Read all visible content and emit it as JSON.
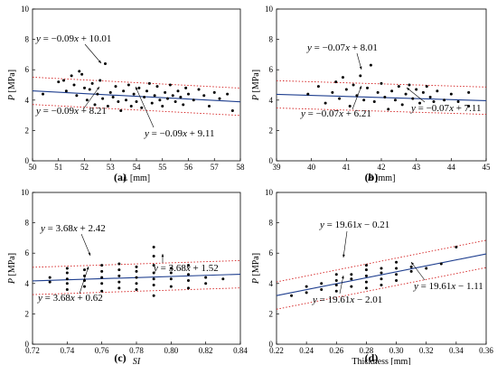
{
  "chart_data": [
    {
      "type": "scatter",
      "panel_label": "(a)",
      "xlabel_var": "L",
      "xlabel_unit": " [mm]",
      "ylabel_var": "P",
      "ylabel_unit": " [MPa]",
      "xlim": [
        50,
        58
      ],
      "ylim": [
        0,
        10
      ],
      "xticks": [
        "50",
        "51",
        "52",
        "53",
        "54",
        "55",
        "56",
        "57",
        "58"
      ],
      "yticks": [
        "0",
        "2",
        "4",
        "6",
        "8",
        "10"
      ],
      "fit": {
        "slope": -0.09,
        "intercept": 9.11
      },
      "upper": {
        "slope": -0.09,
        "intercept": 10.01
      },
      "lower": {
        "slope": -0.09,
        "intercept": 8.21
      },
      "equations": [
        "y = −0.09x + 10.01",
        "y = −0.09x + 8.21",
        "y = −0.09x + 9.11"
      ],
      "points": [
        [
          50.4,
          4.4
        ],
        [
          51.0,
          5.2
        ],
        [
          51.2,
          5.3
        ],
        [
          51.3,
          4.6
        ],
        [
          51.5,
          5.6
        ],
        [
          51.6,
          5.0
        ],
        [
          51.7,
          4.3
        ],
        [
          51.8,
          5.9
        ],
        [
          51.9,
          5.7
        ],
        [
          52.0,
          4.8
        ],
        [
          52.1,
          4.0
        ],
        [
          52.2,
          4.7
        ],
        [
          52.3,
          5.1
        ],
        [
          52.4,
          3.7
        ],
        [
          52.5,
          4.4
        ],
        [
          52.6,
          5.3
        ],
        [
          52.7,
          4.1
        ],
        [
          52.8,
          6.4
        ],
        [
          52.9,
          3.6
        ],
        [
          53.0,
          4.5
        ],
        [
          53.1,
          4.2
        ],
        [
          53.2,
          4.9
        ],
        [
          53.3,
          3.9
        ],
        [
          53.4,
          3.3
        ],
        [
          53.5,
          4.6
        ],
        [
          53.6,
          4.0
        ],
        [
          53.7,
          5.0
        ],
        [
          53.8,
          3.6
        ],
        [
          53.9,
          4.4
        ],
        [
          54.0,
          3.9
        ],
        [
          54.1,
          4.8
        ],
        [
          54.2,
          3.5
        ],
        [
          54.3,
          4.2
        ],
        [
          54.4,
          4.6
        ],
        [
          54.5,
          5.1
        ],
        [
          54.6,
          3.8
        ],
        [
          54.7,
          4.3
        ],
        [
          54.8,
          4.9
        ],
        [
          54.9,
          4.0
        ],
        [
          55.0,
          3.6
        ],
        [
          55.1,
          4.5
        ],
        [
          55.2,
          4.1
        ],
        [
          55.3,
          5.0
        ],
        [
          55.4,
          4.3
        ],
        [
          55.5,
          3.9
        ],
        [
          55.6,
          4.6
        ],
        [
          55.7,
          4.2
        ],
        [
          55.8,
          3.7
        ],
        [
          55.9,
          4.8
        ],
        [
          56.0,
          4.4
        ],
        [
          56.2,
          4.0
        ],
        [
          56.4,
          4.7
        ],
        [
          56.6,
          4.3
        ],
        [
          56.8,
          3.6
        ],
        [
          57.0,
          4.5
        ],
        [
          57.2,
          4.1
        ],
        [
          57.5,
          4.4
        ],
        [
          57.7,
          3.3
        ]
      ]
    },
    {
      "type": "scatter",
      "panel_label": "(b)",
      "xlabel_var": "B",
      "xlabel_unit": " [mm]",
      "ylabel_var": "P",
      "ylabel_unit": " [MPa]",
      "xlim": [
        39,
        45
      ],
      "ylim": [
        0,
        10
      ],
      "xticks": [
        "39",
        "40",
        "41",
        "42",
        "43",
        "44",
        "45"
      ],
      "yticks": [
        "0",
        "2",
        "4",
        "6",
        "8",
        "10"
      ],
      "fit": {
        "slope": -0.07,
        "intercept": 7.11
      },
      "upper": {
        "slope": -0.07,
        "intercept": 8.01
      },
      "lower": {
        "slope": -0.07,
        "intercept": 6.21
      },
      "equations": [
        "y = −0.07x + 8.01",
        "y = −0.07x + 6.21",
        "y = −0.07x + 7.11"
      ],
      "points": [
        [
          39.9,
          4.4
        ],
        [
          40.2,
          4.9
        ],
        [
          40.4,
          3.8
        ],
        [
          40.6,
          4.5
        ],
        [
          40.7,
          5.2
        ],
        [
          40.8,
          4.1
        ],
        [
          40.9,
          5.5
        ],
        [
          41.0,
          4.7
        ],
        [
          41.1,
          3.6
        ],
        [
          41.2,
          5.0
        ],
        [
          41.3,
          4.3
        ],
        [
          41.4,
          5.6
        ],
        [
          41.5,
          4.0
        ],
        [
          41.6,
          4.8
        ],
        [
          41.7,
          6.3
        ],
        [
          41.8,
          3.9
        ],
        [
          41.9,
          4.5
        ],
        [
          42.0,
          5.1
        ],
        [
          42.1,
          4.2
        ],
        [
          42.2,
          3.4
        ],
        [
          42.3,
          4.6
        ],
        [
          42.4,
          4.0
        ],
        [
          42.5,
          4.9
        ],
        [
          42.6,
          3.7
        ],
        [
          42.7,
          4.4
        ],
        [
          42.8,
          5.0
        ],
        [
          42.9,
          4.1
        ],
        [
          43.0,
          4.7
        ],
        [
          43.1,
          3.8
        ],
        [
          43.2,
          4.5
        ],
        [
          43.3,
          4.9
        ],
        [
          43.4,
          4.2
        ],
        [
          43.5,
          3.9
        ],
        [
          43.6,
          4.6
        ],
        [
          43.8,
          4.0
        ],
        [
          44.0,
          4.4
        ],
        [
          44.2,
          3.9
        ],
        [
          44.5,
          4.5
        ],
        [
          44.5,
          3.6
        ]
      ]
    },
    {
      "type": "scatter",
      "panel_label": "(c)",
      "xlabel_var": "SI",
      "xlabel_unit": "",
      "ylabel_var": "P",
      "ylabel_unit": " [MPa]",
      "xlim": [
        0.72,
        0.84
      ],
      "ylim": [
        0,
        10
      ],
      "xticks": [
        "0.72",
        "0.74",
        "0.76",
        "0.78",
        "0.80",
        "0.82",
        "0.84"
      ],
      "yticks": [
        "0",
        "2",
        "4",
        "6",
        "8",
        "10"
      ],
      "fit": {
        "slope": 3.68,
        "intercept": 1.52
      },
      "upper": {
        "slope": 3.68,
        "intercept": 2.42
      },
      "lower": {
        "slope": 3.68,
        "intercept": 0.62
      },
      "equations": [
        "y = 3.68x + 2.42",
        "y = 3.68x + 0.62",
        "y = 3.68x + 1.52"
      ],
      "points": [
        [
          0.73,
          4.1
        ],
        [
          0.73,
          4.4
        ],
        [
          0.74,
          3.6
        ],
        [
          0.74,
          4.0
        ],
        [
          0.74,
          4.3
        ],
        [
          0.74,
          4.7
        ],
        [
          0.74,
          5.0
        ],
        [
          0.75,
          3.8
        ],
        [
          0.75,
          4.2
        ],
        [
          0.75,
          4.5
        ],
        [
          0.75,
          4.9
        ],
        [
          0.76,
          3.5
        ],
        [
          0.76,
          4.0
        ],
        [
          0.76,
          4.4
        ],
        [
          0.76,
          4.8
        ],
        [
          0.76,
          5.2
        ],
        [
          0.77,
          3.7
        ],
        [
          0.77,
          4.1
        ],
        [
          0.77,
          4.5
        ],
        [
          0.77,
          4.9
        ],
        [
          0.77,
          5.3
        ],
        [
          0.78,
          3.6
        ],
        [
          0.78,
          4.0
        ],
        [
          0.78,
          4.4
        ],
        [
          0.78,
          4.8
        ],
        [
          0.78,
          5.1
        ],
        [
          0.79,
          3.2
        ],
        [
          0.79,
          3.9
        ],
        [
          0.79,
          4.3
        ],
        [
          0.79,
          4.7
        ],
        [
          0.79,
          5.2
        ],
        [
          0.79,
          5.8
        ],
        [
          0.79,
          6.4
        ],
        [
          0.8,
          3.8
        ],
        [
          0.8,
          4.3
        ],
        [
          0.8,
          4.7
        ],
        [
          0.8,
          5.0
        ],
        [
          0.81,
          3.7
        ],
        [
          0.81,
          4.2
        ],
        [
          0.81,
          4.6
        ],
        [
          0.81,
          5.2
        ],
        [
          0.82,
          4.0
        ],
        [
          0.82,
          4.4
        ],
        [
          0.83,
          4.3
        ]
      ]
    },
    {
      "type": "scatter",
      "panel_label": "(d)",
      "xlabel_var": "",
      "xlabel_unit": "Thickness [mm]",
      "ylabel_var": "P",
      "ylabel_unit": " [MPa]",
      "xlim": [
        0.22,
        0.36
      ],
      "ylim": [
        0,
        10
      ],
      "xticks": [
        "0.22",
        "0.24",
        "0.26",
        "0.28",
        "0.30",
        "0.32",
        "0.34",
        "0.36"
      ],
      "yticks": [
        "0",
        "2",
        "4",
        "6",
        "8",
        "10"
      ],
      "fit": {
        "slope": 19.61,
        "intercept": -1.11
      },
      "upper": {
        "slope": 19.61,
        "intercept": -0.21
      },
      "lower": {
        "slope": 19.61,
        "intercept": -2.01
      },
      "equations": [
        "y = 19.61x − 0.21",
        "y = 19.61x − 2.01",
        "y = 19.61x − 1.11"
      ],
      "points": [
        [
          0.23,
          3.2
        ],
        [
          0.24,
          3.4
        ],
        [
          0.24,
          3.8
        ],
        [
          0.25,
          3.6
        ],
        [
          0.25,
          4.0
        ],
        [
          0.26,
          3.5
        ],
        [
          0.26,
          3.9
        ],
        [
          0.26,
          4.2
        ],
        [
          0.26,
          4.6
        ],
        [
          0.27,
          3.8
        ],
        [
          0.27,
          4.3
        ],
        [
          0.27,
          4.6
        ],
        [
          0.28,
          3.7
        ],
        [
          0.28,
          4.1
        ],
        [
          0.28,
          4.5
        ],
        [
          0.28,
          4.9
        ],
        [
          0.28,
          5.2
        ],
        [
          0.29,
          3.9
        ],
        [
          0.29,
          4.3
        ],
        [
          0.29,
          4.7
        ],
        [
          0.29,
          5.0
        ],
        [
          0.3,
          4.2
        ],
        [
          0.3,
          4.6
        ],
        [
          0.3,
          5.0
        ],
        [
          0.3,
          5.4
        ],
        [
          0.31,
          4.8
        ],
        [
          0.31,
          5.1
        ],
        [
          0.32,
          5.0
        ],
        [
          0.33,
          5.3
        ],
        [
          0.34,
          6.4
        ]
      ]
    }
  ]
}
